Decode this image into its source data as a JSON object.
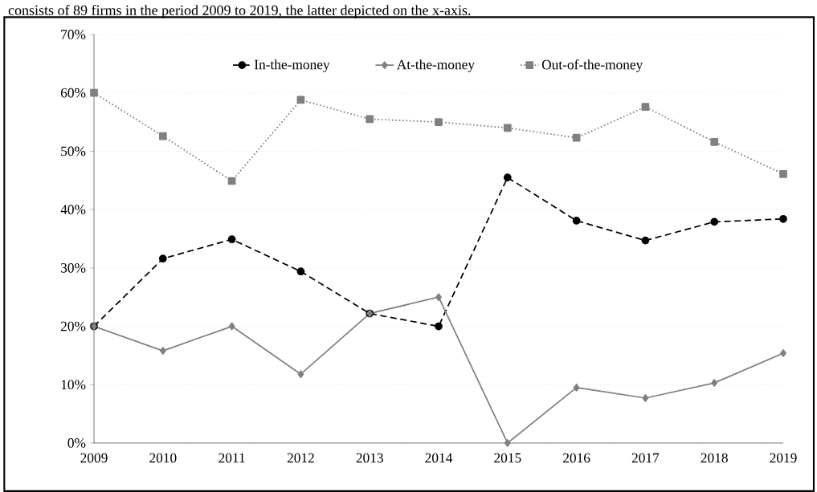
{
  "chart_data": {
    "type": "line",
    "annotations": [
      "consists of 89 firms in the period 2009 to 2019, the latter depicted on the x-axis."
    ],
    "categories": [
      "2009",
      "2010",
      "2011",
      "2012",
      "2013",
      "2014",
      "2015",
      "2016",
      "2017",
      "2018",
      "2019"
    ],
    "ylim": [
      0,
      70
    ],
    "yticks": [
      {
        "value": 0,
        "label": "0%"
      },
      {
        "value": 10,
        "label": "10%"
      },
      {
        "value": 20,
        "label": "20%"
      },
      {
        "value": 30,
        "label": "30%"
      },
      {
        "value": 40,
        "label": "40%"
      },
      {
        "value": 50,
        "label": "50%"
      },
      {
        "value": 60,
        "label": "60%"
      },
      {
        "value": 70,
        "label": "70%"
      }
    ],
    "grid": "y",
    "legend": "top",
    "series": [
      {
        "name": "In-the-money",
        "color": "#000000",
        "marker": "circle",
        "line_style": "dashed",
        "values": [
          20.0,
          31.6,
          34.9,
          29.4,
          22.2,
          20.0,
          45.5,
          38.1,
          34.7,
          37.9,
          38.4
        ]
      },
      {
        "name": "At-the-money",
        "color": "#808080",
        "marker": "diamond",
        "line_style": "solid",
        "values": [
          20.0,
          15.8,
          20.0,
          11.8,
          22.2,
          25.0,
          0.0,
          9.5,
          7.7,
          10.3,
          15.4
        ]
      },
      {
        "name": "Out-of-the-money",
        "color": "#808080",
        "marker": "square",
        "line_style": "dotted",
        "values": [
          60.0,
          52.6,
          44.9,
          58.8,
          55.5,
          55.0,
          54.0,
          52.3,
          57.6,
          51.6,
          46.1
        ]
      }
    ]
  }
}
